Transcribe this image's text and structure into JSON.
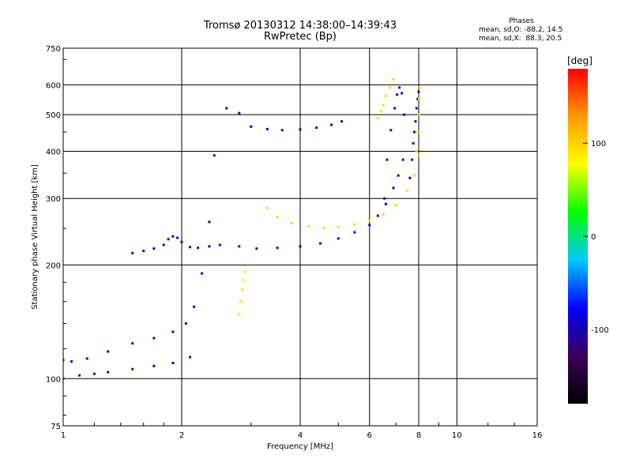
{
  "header": {
    "title": "Tromsø 20130312 14:38:00–14:39:43",
    "subtitle": "RwPretec (Bp)"
  },
  "phase_stats": {
    "heading": "Phases",
    "line_o": "mean, sd,O: -88.2, 14.5",
    "line_x": "mean, sd,X:  88.3, 20.5"
  },
  "colorbar": {
    "unit_label": "[deg]",
    "ticks": [
      "100",
      "0",
      "-100"
    ],
    "colors": [
      "#000000",
      "#3c005a",
      "#0000ff",
      "#00c8ff",
      "#00ff00",
      "#ffff00",
      "#ff9900",
      "#ff0000"
    ]
  },
  "chart_data": {
    "type": "scatter",
    "xlabel": "Frequency [MHz]",
    "ylabel": "Stationary phase Virtual Height [km]",
    "xscale": "log",
    "yscale": "log",
    "xlim": [
      1,
      16
    ],
    "ylim": [
      75,
      750
    ],
    "xticks": [
      "1",
      "2",
      "4",
      "6",
      "8",
      "10",
      "16"
    ],
    "yticks": [
      "750",
      "600",
      "500",
      "400",
      "300",
      "200",
      "100",
      "75"
    ],
    "grid": "on",
    "traces": [
      {
        "mode": "O",
        "phase": -100,
        "x": [
          1.0,
          1.05,
          1.15,
          1.3,
          1.5,
          1.7,
          1.9,
          2.05,
          2.15,
          2.25,
          2.35,
          2.42
        ],
        "y": [
          112,
          111,
          113,
          118,
          124,
          128,
          133,
          140,
          155,
          190,
          260,
          390
        ]
      },
      {
        "mode": "O",
        "phase": -100,
        "x": [
          1.0,
          1.1,
          1.2,
          1.3,
          1.5,
          1.7,
          1.9,
          2.1
        ],
        "y": [
          100,
          102,
          103,
          104,
          106,
          108,
          110,
          114
        ]
      },
      {
        "mode": "O",
        "phase": -100,
        "x": [
          1.5,
          1.6,
          1.7,
          1.8,
          1.85,
          1.9,
          1.95,
          2.0,
          2.1,
          2.2,
          2.35,
          2.5,
          2.8,
          3.1,
          3.5,
          4.0,
          4.5,
          5.0,
          5.5,
          6.0,
          6.3,
          6.6,
          6.9,
          7.1,
          7.3
        ],
        "y": [
          215,
          218,
          221,
          226,
          234,
          238,
          236,
          230,
          223,
          222,
          224,
          226,
          224,
          221,
          222,
          224,
          228,
          235,
          244,
          255,
          270,
          290,
          320,
          345,
          380
        ]
      },
      {
        "mode": "O",
        "phase": -105,
        "x": [
          2.6,
          2.8,
          3.0,
          3.3,
          3.6,
          4.0,
          4.4,
          4.8,
          5.1
        ],
        "y": [
          520,
          505,
          465,
          458,
          455,
          457,
          462,
          470,
          480
        ]
      },
      {
        "mode": "O",
        "phase": -95,
        "x": [
          6.55,
          6.65,
          6.8,
          6.95,
          7.05,
          7.15,
          7.25,
          7.35
        ],
        "y": [
          300,
          380,
          455,
          520,
          565,
          590,
          570,
          500
        ]
      },
      {
        "mode": "O",
        "phase": -100,
        "x": [
          7.6,
          7.7,
          7.75,
          7.8,
          7.85,
          7.9,
          7.95,
          8.0
        ],
        "y": [
          340,
          380,
          420,
          450,
          480,
          520,
          550,
          575
        ]
      },
      {
        "mode": "X",
        "phase": 95,
        "x": [
          3.3,
          3.5,
          3.8,
          4.2,
          4.6,
          5.0,
          5.5,
          6.0,
          6.5,
          7.0,
          7.5,
          7.8,
          8.0
        ],
        "y": [
          283,
          268,
          258,
          253,
          251,
          252,
          256,
          262,
          272,
          288,
          315,
          345,
          390
        ]
      },
      {
        "mode": "X",
        "phase": 90,
        "x": [
          2.8,
          2.82,
          2.85,
          2.87,
          2.9
        ],
        "y": [
          148,
          160,
          172,
          182,
          192
        ]
      },
      {
        "mode": "X",
        "phase": 95,
        "x": [
          6.3,
          6.4,
          6.5,
          6.6,
          6.75,
          6.9
        ],
        "y": [
          490,
          510,
          530,
          560,
          590,
          620
        ]
      },
      {
        "mode": "X",
        "phase": 100,
        "x": [
          7.9,
          7.95,
          8.0,
          8.02,
          8.05
        ],
        "y": [
          400,
          450,
          500,
          550,
          590
        ]
      }
    ]
  }
}
